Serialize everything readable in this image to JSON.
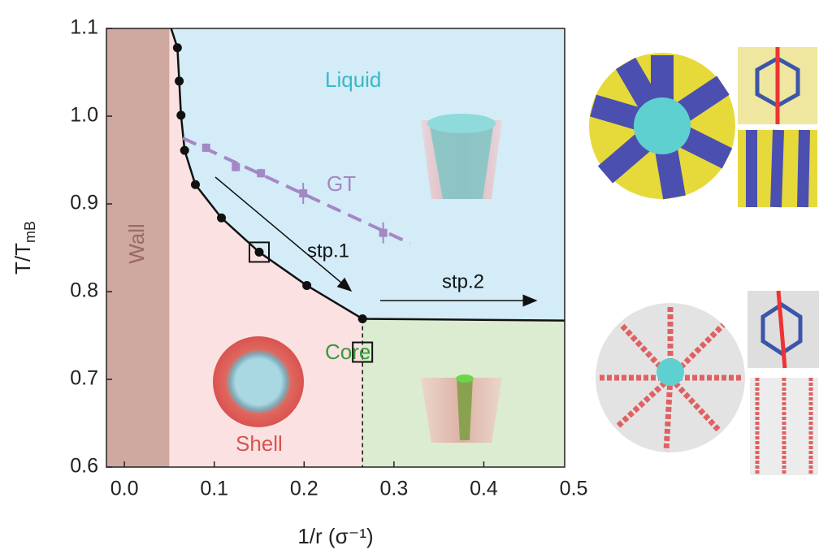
{
  "chart_data": {
    "type": "phase-diagram",
    "xlabel": "1/r (σ⁻¹)",
    "ylabel": {
      "main": "T/T",
      "sub": "mB"
    },
    "xlim": [
      -0.02,
      0.49
    ],
    "ylim": [
      0.6,
      1.1
    ],
    "xticks": [
      {
        "value": 0,
        "label": "0.0"
      },
      0.1,
      0.2,
      0.3,
      0.4,
      0.5
    ],
    "yticks": [
      0.6,
      0.7,
      0.8,
      0.9,
      {
        "value": 1,
        "label": "1.0"
      },
      1.1
    ],
    "regions": {
      "wall": "Wall",
      "shell": "Shell",
      "liquid": "Liquid",
      "core": "Core",
      "wall_x": 0.05
    },
    "series": [
      {
        "name": "phase boundary",
        "color": "#111111",
        "x": [
          0.052,
          0.059,
          0.061,
          0.063,
          0.067,
          0.079,
          0.108,
          0.15,
          0.203,
          0.265,
          0.49
        ],
        "values": [
          1.1,
          1.078,
          1.04,
          1.001,
          0.961,
          0.922,
          0.884,
          0.845,
          0.807,
          0.769,
          0.767
        ]
      },
      {
        "name": "GT",
        "color": "#a487c4",
        "x": [
          0.091,
          0.124,
          0.152,
          0.199,
          0.288
        ],
        "values": [
          0.964,
          0.942,
          0.935,
          0.912,
          0.867
        ],
        "errors": [
          0.005,
          0.005,
          0.005,
          0.012,
          0.012
        ],
        "fit_x": [
          0.065,
          0.318
        ],
        "fit_values": [
          0.975,
          0.855
        ]
      }
    ],
    "markers_at": [
      1,
      2,
      3,
      4,
      5,
      6,
      7,
      8,
      9
    ],
    "open_squares": {
      "x": [
        0.15,
        0.265
      ],
      "values": [
        0.845,
        0.731
      ]
    },
    "core_x": 0.265,
    "annotations": {
      "step1": "stp.1",
      "step2": "stp.2"
    }
  }
}
